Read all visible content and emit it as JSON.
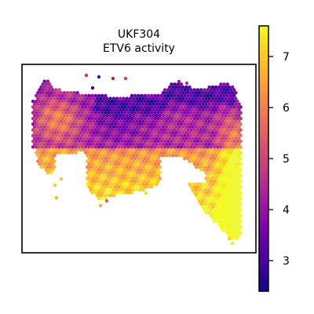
{
  "chart_data": {
    "type": "scatter",
    "title": "UKF304",
    "subtitle": "ETV6 activity",
    "xlabel": "",
    "ylabel": "",
    "grid": false,
    "marker": "hexagon",
    "colormap": "plasma",
    "colorbar": {
      "position": "right",
      "range": [
        2.4,
        7.6
      ],
      "ticks": [
        3,
        4,
        5,
        6,
        7
      ],
      "tick_labels": [
        "3",
        "4",
        "5",
        "6",
        "7"
      ]
    },
    "colors": {
      "plasma": [
        "#0d0887",
        "#46039f",
        "#7201a8",
        "#9c179e",
        "#bd3786",
        "#d8576b",
        "#ed7953",
        "#fb9f3a",
        "#fdca26",
        "#f0f921"
      ]
    },
    "description_of_values": "spatial transcriptomics spots; high activity (6-7) in lower/right lobes, low activity (3-4) in upper band"
  }
}
